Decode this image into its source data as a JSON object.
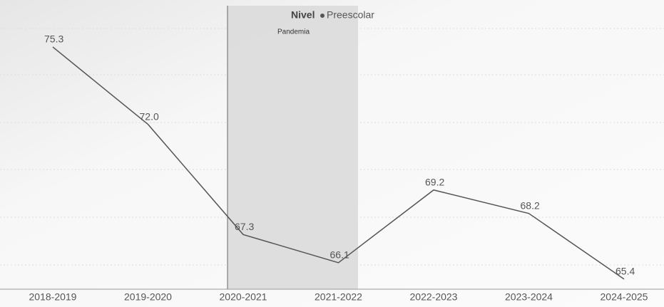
{
  "chart_data": {
    "type": "line",
    "legend_title": "Nivel",
    "annotation": "Pandemia",
    "categories": [
      "2018-2019",
      "2019-2020",
      "2020-2021",
      "2021-2022",
      "2022-2023",
      "2023-2024",
      "2024-2025"
    ],
    "series": [
      {
        "name": "Preescolar",
        "color": "#555555",
        "values": [
          75.3,
          72.0,
          67.3,
          66.1,
          69.2,
          68.2,
          65.4
        ],
        "value_labels": [
          "75.3",
          "72.0",
          "67.3",
          "66.1",
          "69.2",
          "68.2",
          "65.4"
        ]
      }
    ],
    "ylim": [
      65,
      77
    ]
  }
}
